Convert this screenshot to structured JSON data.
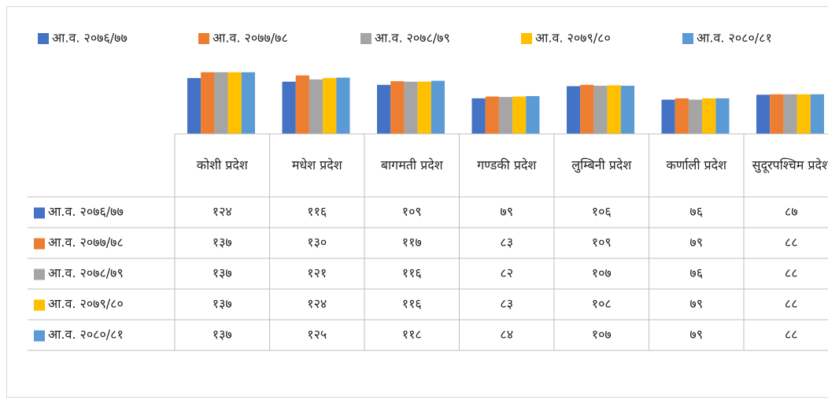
{
  "chart_data": {
    "type": "bar",
    "categories": [
      "कोशी प्रदेश",
      "मधेश प्रदेश",
      "बागमती प्रदेश",
      "गण्डकी प्रदेश",
      "लुम्बिनी प्रदेश",
      "कर्णाली प्रदेश",
      "सुदूरपश्चिम प्रदेश"
    ],
    "series": [
      {
        "name": "आ.व. २०७६/७७",
        "color": "#4472c4",
        "values": [
          124,
          116,
          109,
          79,
          106,
          76,
          87
        ],
        "value_labels": [
          "१२४",
          "११६",
          "१०९",
          "७९",
          "१०६",
          "७६",
          "८७"
        ]
      },
      {
        "name": "आ.व. २०७७/७८",
        "color": "#ed7d31",
        "values": [
          137,
          130,
          117,
          83,
          109,
          79,
          88
        ],
        "value_labels": [
          "१३७",
          "१३०",
          "११७",
          "८३",
          "१०९",
          "७९",
          "८८"
        ]
      },
      {
        "name": "आ.व. २०७८/७९",
        "color": "#a5a5a5",
        "values": [
          137,
          121,
          116,
          82,
          107,
          76,
          88
        ],
        "value_labels": [
          "१३७",
          "१२१",
          "११६",
          "८२",
          "१०७",
          "७६",
          "८८"
        ]
      },
      {
        "name": "आ.व. २०७९/८०",
        "color": "#ffc000",
        "values": [
          137,
          124,
          116,
          83,
          108,
          79,
          88
        ],
        "value_labels": [
          "१३७",
          "१२४",
          "११६",
          "८३",
          "१०८",
          "७९",
          "८८"
        ]
      },
      {
        "name": "आ.व. २०८०/८१",
        "color": "#5b9bd5",
        "values": [
          137,
          125,
          118,
          84,
          107,
          79,
          88
        ],
        "value_labels": [
          "१३७",
          "१२५",
          "११८",
          "८४",
          "१०७",
          "७९",
          "८८"
        ]
      }
    ],
    "ylim": [
      0,
      140
    ],
    "legend": "top"
  }
}
